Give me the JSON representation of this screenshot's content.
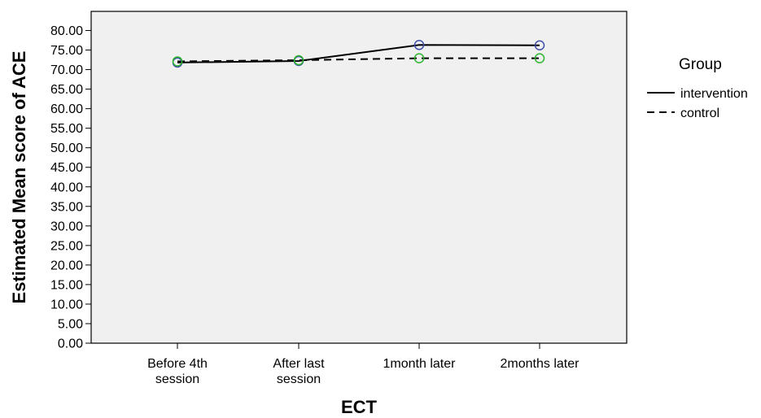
{
  "chart_data": {
    "type": "line",
    "xlabel": "ECT",
    "ylabel": "Estimated Mean score of ACE",
    "categories": [
      [
        "Before 4th",
        "session"
      ],
      [
        "After last",
        "session"
      ],
      [
        "1month later"
      ],
      [
        "2months later"
      ]
    ],
    "ylim": [
      0,
      80
    ],
    "yticks": [
      0,
      5,
      10,
      15,
      20,
      25,
      30,
      35,
      40,
      45,
      50,
      55,
      60,
      65,
      70,
      75,
      80
    ],
    "ytick_labels": [
      "0.00",
      "5.00",
      "10.00",
      "15.00",
      "20.00",
      "25.00",
      "30.00",
      "35.00",
      "40.00",
      "45.00",
      "50.00",
      "55.00",
      "60.00",
      "65.00",
      "70.00",
      "75.00",
      "80.00"
    ],
    "grid": false,
    "legend": {
      "title": "Group",
      "placement": "right"
    },
    "series": [
      {
        "name": "intervention",
        "values": [
          71.8,
          72.2,
          76.3,
          76.2
        ],
        "line_style": "solid",
        "marker_color": "#3f4fa8"
      },
      {
        "name": "control",
        "values": [
          72.1,
          72.4,
          72.9,
          72.9
        ],
        "line_style": "dashed",
        "marker_color": "#2db52d"
      }
    ],
    "colors": {
      "plot_background": "#f0f0f0",
      "line": "#000000"
    }
  }
}
